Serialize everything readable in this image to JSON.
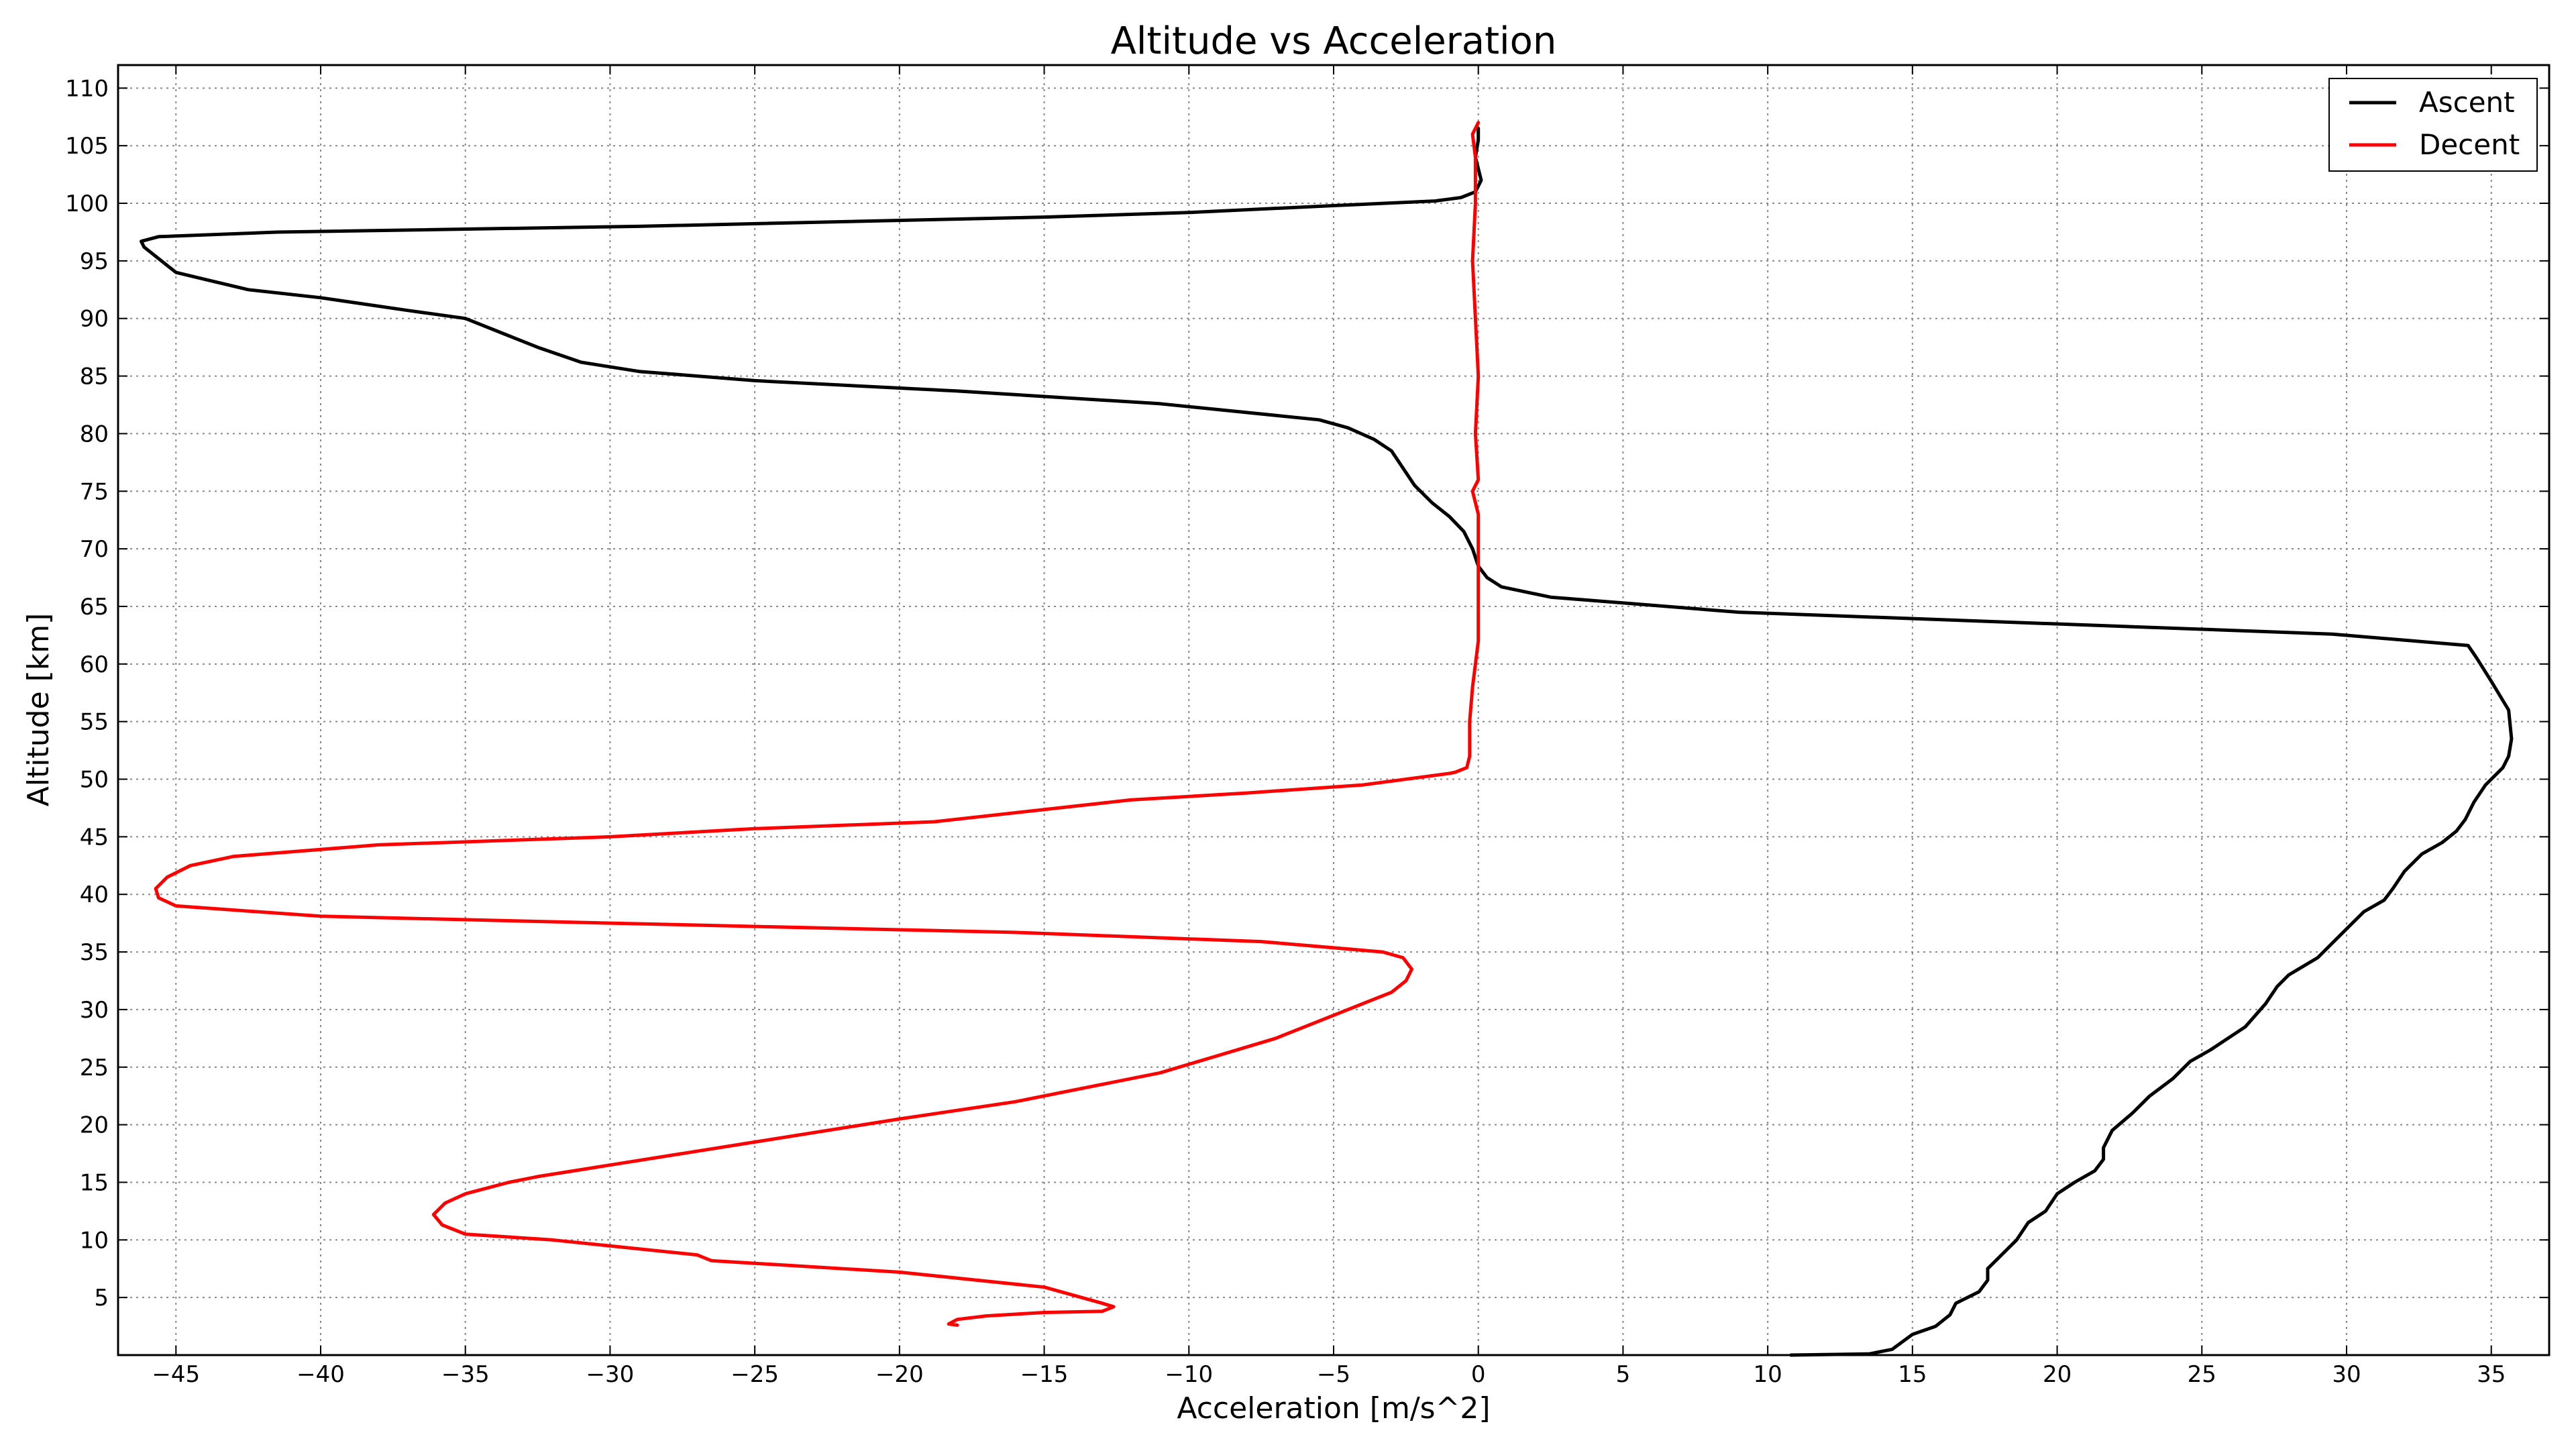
{
  "chart_data": {
    "type": "line",
    "title": "Altitude vs Acceleration",
    "xlabel": "Acceleration [m/s^2]",
    "ylabel": "Altitude [km]",
    "xlim": [
      -47,
      37
    ],
    "ylim": [
      0,
      112
    ],
    "xticks": [
      -45,
      -40,
      -35,
      -30,
      -25,
      -20,
      -15,
      -10,
      -5,
      0,
      5,
      10,
      15,
      20,
      25,
      30,
      35
    ],
    "yticks": [
      5,
      10,
      15,
      20,
      25,
      30,
      35,
      40,
      45,
      50,
      55,
      60,
      65,
      70,
      75,
      80,
      85,
      90,
      95,
      100,
      105,
      110
    ],
    "grid": true,
    "legend_position": "top-right",
    "series": [
      {
        "name": "Ascent",
        "color": "#000000",
        "points": [
          [
            10.8,
            0
          ],
          [
            13.5,
            0.1
          ],
          [
            14.3,
            0.5
          ],
          [
            15.0,
            1.8
          ],
          [
            15.8,
            2.5
          ],
          [
            16.3,
            3.5
          ],
          [
            16.5,
            4.5
          ],
          [
            17.3,
            5.5
          ],
          [
            17.6,
            6.5
          ],
          [
            17.6,
            7.5
          ],
          [
            18.2,
            9.0
          ],
          [
            18.6,
            10.0
          ],
          [
            19.0,
            11.5
          ],
          [
            19.6,
            12.5
          ],
          [
            20.0,
            14.0
          ],
          [
            20.6,
            15.0
          ],
          [
            21.3,
            16.0
          ],
          [
            21.6,
            17.0
          ],
          [
            21.6,
            18.0
          ],
          [
            21.9,
            19.5
          ],
          [
            22.6,
            21.0
          ],
          [
            23.2,
            22.5
          ],
          [
            24.0,
            24.0
          ],
          [
            24.6,
            25.5
          ],
          [
            25.3,
            26.5
          ],
          [
            26.5,
            28.5
          ],
          [
            27.2,
            30.5
          ],
          [
            27.6,
            32.0
          ],
          [
            28.0,
            33.0
          ],
          [
            29.0,
            34.5
          ],
          [
            29.6,
            36.0
          ],
          [
            30.2,
            37.5
          ],
          [
            30.6,
            38.5
          ],
          [
            31.3,
            39.5
          ],
          [
            31.6,
            40.5
          ],
          [
            32.0,
            42.0
          ],
          [
            32.6,
            43.5
          ],
          [
            33.3,
            44.5
          ],
          [
            33.8,
            45.5
          ],
          [
            34.1,
            46.5
          ],
          [
            34.4,
            48.0
          ],
          [
            34.8,
            49.5
          ],
          [
            35.4,
            51.0
          ],
          [
            35.6,
            52.0
          ],
          [
            35.7,
            53.5
          ],
          [
            35.6,
            56.0
          ],
          [
            35.0,
            58.5
          ],
          [
            34.5,
            60.5
          ],
          [
            34.2,
            61.6
          ],
          [
            29.5,
            62.6
          ],
          [
            9.0,
            64.5
          ],
          [
            2.5,
            65.8
          ],
          [
            0.8,
            66.7
          ],
          [
            0.3,
            67.5
          ],
          [
            0.0,
            68.5
          ],
          [
            -0.2,
            70.0
          ],
          [
            -0.5,
            71.5
          ],
          [
            -1.0,
            72.8
          ],
          [
            -1.6,
            74.0
          ],
          [
            -2.2,
            75.5
          ],
          [
            -2.6,
            77.0
          ],
          [
            -3.0,
            78.5
          ],
          [
            -3.6,
            79.5
          ],
          [
            -4.5,
            80.5
          ],
          [
            -5.5,
            81.2
          ],
          [
            -11.0,
            82.6
          ],
          [
            -18.0,
            83.7
          ],
          [
            -25.0,
            84.6
          ],
          [
            -29.0,
            85.4
          ],
          [
            -31.0,
            86.2
          ],
          [
            -32.5,
            87.5
          ],
          [
            -33.5,
            88.5
          ],
          [
            -34.5,
            89.5
          ],
          [
            -35.0,
            90.0
          ],
          [
            -37.0,
            90.7
          ],
          [
            -40.0,
            91.8
          ],
          [
            -42.5,
            92.5
          ],
          [
            -44.0,
            93.4
          ],
          [
            -45.0,
            94.0
          ],
          [
            -45.5,
            95.0
          ],
          [
            -46.1,
            96.2
          ],
          [
            -46.2,
            96.7
          ],
          [
            -45.6,
            97.1
          ],
          [
            -41.5,
            97.5
          ],
          [
            -29.0,
            98.0
          ],
          [
            -15.0,
            98.8
          ],
          [
            -10.0,
            99.2
          ],
          [
            -5.0,
            99.8
          ],
          [
            -1.5,
            100.2
          ],
          [
            -0.6,
            100.5
          ],
          [
            -0.1,
            101.0
          ],
          [
            0.1,
            102.0
          ],
          [
            0.0,
            103.0
          ],
          [
            -0.1,
            104.0
          ],
          [
            0.0,
            105.5
          ],
          [
            0.0,
            106.5
          ]
        ]
      },
      {
        "name": "Decent",
        "color": "#ff0000",
        "points": [
          [
            0.0,
            107.0
          ],
          [
            -0.2,
            106.0
          ],
          [
            -0.1,
            104.0
          ],
          [
            -0.1,
            100.0
          ],
          [
            -0.2,
            95.0
          ],
          [
            -0.1,
            90.0
          ],
          [
            0.0,
            85.0
          ],
          [
            -0.1,
            80.0
          ],
          [
            0.0,
            76.0
          ],
          [
            -0.2,
            75.0
          ],
          [
            0.0,
            73.0
          ],
          [
            0.0,
            70.0
          ],
          [
            0.0,
            65.0
          ],
          [
            0.0,
            62.0
          ],
          [
            -0.1,
            60.0
          ],
          [
            -0.2,
            58.0
          ],
          [
            -0.3,
            55.0
          ],
          [
            -0.3,
            52.0
          ],
          [
            -0.4,
            51.0
          ],
          [
            -0.8,
            50.6
          ],
          [
            -1.0,
            50.5
          ],
          [
            -4.0,
            49.5
          ],
          [
            -8.0,
            48.8
          ],
          [
            -12.0,
            48.2
          ],
          [
            -18.8,
            46.3
          ],
          [
            -25.0,
            45.7
          ],
          [
            -30.0,
            45.0
          ],
          [
            -38.0,
            44.3
          ],
          [
            -43.0,
            43.3
          ],
          [
            -44.5,
            42.5
          ],
          [
            -45.3,
            41.5
          ],
          [
            -45.7,
            40.5
          ],
          [
            -45.6,
            39.7
          ],
          [
            -45.0,
            39.0
          ],
          [
            -40.0,
            38.1
          ],
          [
            -30.0,
            37.5
          ],
          [
            -16.0,
            36.7
          ],
          [
            -7.5,
            35.9
          ],
          [
            -3.3,
            35.0
          ],
          [
            -2.6,
            34.5
          ],
          [
            -2.3,
            33.5
          ],
          [
            -2.5,
            32.5
          ],
          [
            -3.0,
            31.5
          ],
          [
            -4.0,
            30.5
          ],
          [
            -5.5,
            29.0
          ],
          [
            -7.0,
            27.5
          ],
          [
            -9.0,
            26.0
          ],
          [
            -11.0,
            24.5
          ],
          [
            -14.0,
            23.0
          ],
          [
            -16.0,
            22.0
          ],
          [
            -20.0,
            20.5
          ],
          [
            -25.0,
            18.5
          ],
          [
            -30.0,
            16.5
          ],
          [
            -32.5,
            15.5
          ],
          [
            -33.5,
            15.0
          ],
          [
            -35.0,
            14.0
          ],
          [
            -35.7,
            13.2
          ],
          [
            -36.1,
            12.2
          ],
          [
            -35.8,
            11.3
          ],
          [
            -35.0,
            10.5
          ],
          [
            -32.0,
            10.0
          ],
          [
            -27.0,
            8.7
          ],
          [
            -26.5,
            8.2
          ],
          [
            -20.0,
            7.2
          ],
          [
            -15.0,
            5.9
          ],
          [
            -13.0,
            4.5
          ],
          [
            -12.6,
            4.2
          ],
          [
            -13.0,
            3.8
          ],
          [
            -15.0,
            3.7
          ],
          [
            -17.0,
            3.4
          ],
          [
            -18.0,
            3.1
          ],
          [
            -18.3,
            2.7
          ],
          [
            -18.0,
            2.6
          ]
        ]
      }
    ]
  }
}
